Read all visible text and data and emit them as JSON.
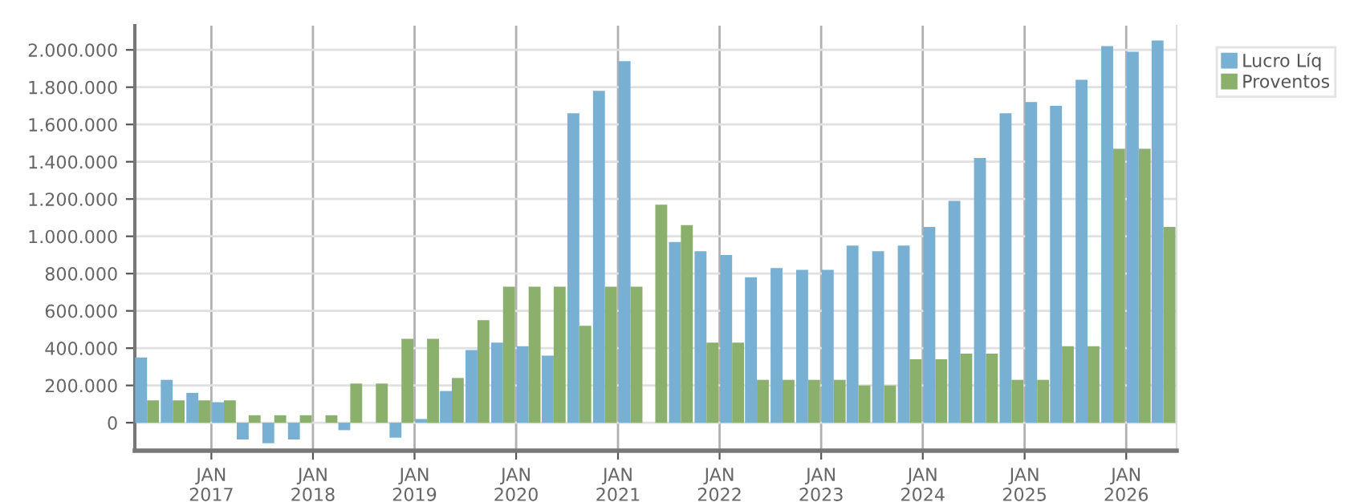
{
  "chart_data": {
    "type": "bar",
    "x": [
      "2016-05-15",
      "2016-08-15",
      "2016-11-15",
      "2017-02-15",
      "2017-05-15",
      "2017-08-15",
      "2017-11-15",
      "2018-02-15",
      "2018-05-15",
      "2018-08-15",
      "2018-11-15",
      "2019-02-15",
      "2019-05-15",
      "2019-08-15",
      "2019-11-15",
      "2020-02-15",
      "2020-05-15",
      "2020-08-15",
      "2020-11-15",
      "2021-02-15",
      "2021-05-15",
      "2021-08-15",
      "2021-11-15",
      "2022-02-15",
      "2022-05-15",
      "2022-08-15",
      "2022-11-15",
      "2023-02-15",
      "2023-05-15",
      "2023-08-15",
      "2023-11-15",
      "2024-02-15",
      "2024-05-15",
      "2024-08-15",
      "2024-11-15",
      "2025-02-15",
      "2025-05-15",
      "2025-08-15",
      "2025-11-15",
      "2026-02-15",
      "2026-05-15"
    ],
    "series": [
      {
        "name": "Lucro Líq",
        "color": "#77b0d3",
        "values": [
          350000,
          230000,
          160000,
          110000,
          -90000,
          -110000,
          -90000,
          null,
          -40000,
          null,
          -80000,
          20000,
          170000,
          390000,
          430000,
          410000,
          360000,
          1660000,
          1780000,
          1940000,
          null,
          970000,
          920000,
          900000,
          780000,
          830000,
          820000,
          820000,
          950000,
          920000,
          950000,
          1050000,
          1190000,
          1420000,
          1660000,
          1720000,
          1700000,
          1840000,
          2020000,
          1990000,
          2050000
        ]
      },
      {
        "name": "Proventos",
        "color": "#8ab06b",
        "values": [
          120000,
          120000,
          120000,
          120000,
          40000,
          40000,
          40000,
          40000,
          210000,
          210000,
          450000,
          450000,
          240000,
          550000,
          730000,
          730000,
          730000,
          520000,
          730000,
          730000,
          1170000,
          1060000,
          430000,
          430000,
          230000,
          230000,
          230000,
          230000,
          200000,
          200000,
          340000,
          340000,
          370000,
          370000,
          230000,
          230000,
          410000,
          410000,
          1470000,
          1470000,
          1050000
        ]
      }
    ],
    "xlim": [
      "2016-04-01",
      "2026-07-01"
    ],
    "xticks": [
      {
        "value": "2017-01-01",
        "label": "JAN\n2017"
      },
      {
        "value": "2018-01-01",
        "label": "JAN\n2018"
      },
      {
        "value": "2019-01-01",
        "label": "JAN\n2019"
      },
      {
        "value": "2020-01-01",
        "label": "JAN\n2020"
      },
      {
        "value": "2021-01-01",
        "label": "JAN\n2021"
      },
      {
        "value": "2022-01-01",
        "label": "JAN\n2022"
      },
      {
        "value": "2023-01-01",
        "label": "JAN\n2023"
      },
      {
        "value": "2024-01-01",
        "label": "JAN\n2024"
      },
      {
        "value": "2025-01-01",
        "label": "JAN\n2025"
      },
      {
        "value": "2026-01-01",
        "label": "JAN\n2026"
      }
    ],
    "ylim": [
      -150000,
      2130000
    ],
    "yticks": [
      {
        "value": 0,
        "label": "0"
      },
      {
        "value": 200000,
        "label": "200.000"
      },
      {
        "value": 400000,
        "label": "400.000"
      },
      {
        "value": 600000,
        "label": "600.000"
      },
      {
        "value": 800000,
        "label": "800.000"
      },
      {
        "value": 1000000,
        "label": "1.000.000"
      },
      {
        "value": 1200000,
        "label": "1.200.000"
      },
      {
        "value": 1400000,
        "label": "1.400.000"
      },
      {
        "value": 1600000,
        "label": "1.600.000"
      },
      {
        "value": 1800000,
        "label": "1.800.000"
      },
      {
        "value": 2000000,
        "label": "2.000.000"
      }
    ],
    "grid": true,
    "legend": "top right"
  }
}
